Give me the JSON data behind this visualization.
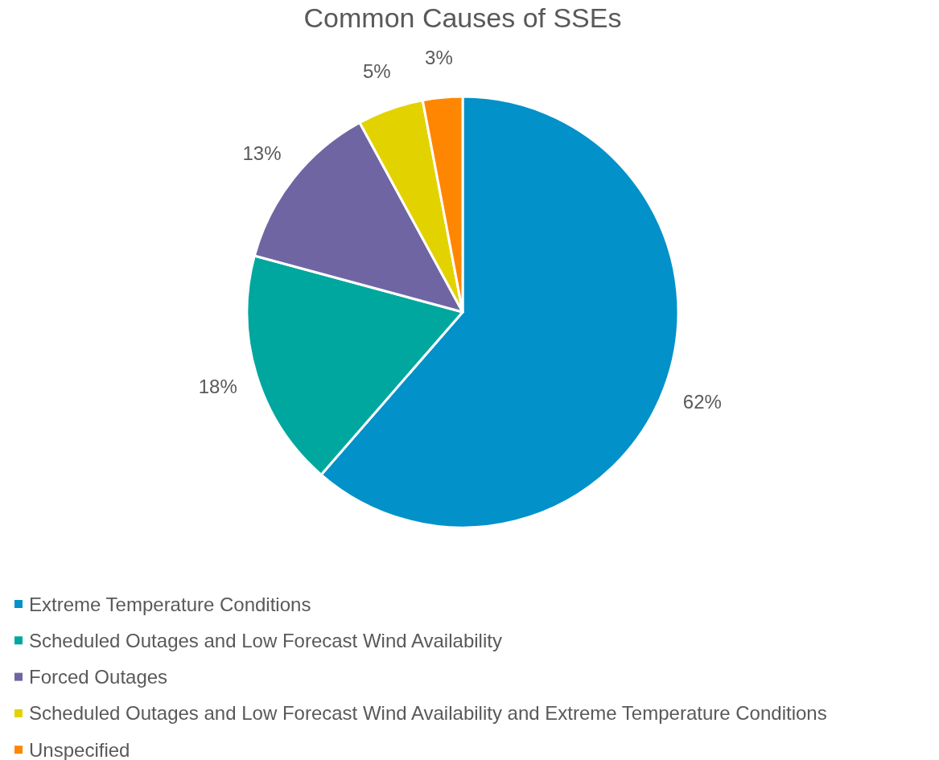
{
  "chart_data": {
    "type": "pie",
    "title": "Common Causes of SSEs",
    "categories": [
      "Extreme Temperature Conditions",
      "Scheduled Outages and Low Forecast Wind Availability",
      "Forced Outages",
      "Scheduled Outages and Low Forecast Wind Availability and Extreme Temperature Conditions",
      "Unspecified"
    ],
    "values": [
      62,
      18,
      13,
      5,
      3
    ],
    "colors": [
      "#0291c9",
      "#00a79e",
      "#7065a3",
      "#e2d300",
      "#ff8600"
    ],
    "value_labels": [
      "62%",
      "18%",
      "13%",
      "5%",
      "3%"
    ],
    "legend": "bottom"
  }
}
